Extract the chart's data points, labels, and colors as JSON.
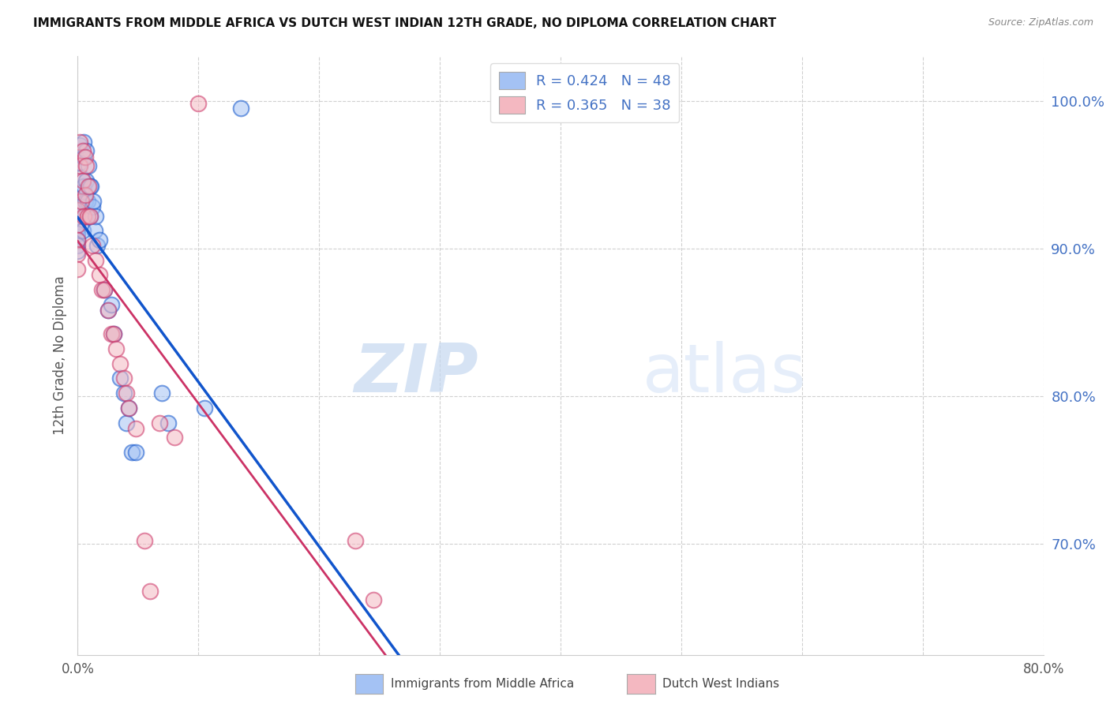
{
  "title": "IMMIGRANTS FROM MIDDLE AFRICA VS DUTCH WEST INDIAN 12TH GRADE, NO DIPLOMA CORRELATION CHART",
  "source": "Source: ZipAtlas.com",
  "ylabel": "12th Grade, No Diploma",
  "xlim": [
    0.0,
    0.8
  ],
  "ylim": [
    0.625,
    1.03
  ],
  "ytick_values": [
    0.7,
    0.8,
    0.9,
    1.0
  ],
  "blue_R": 0.424,
  "blue_N": 48,
  "pink_R": 0.365,
  "pink_N": 38,
  "blue_color": "#a4c2f4",
  "pink_color": "#f4b8c1",
  "blue_line_color": "#1155cc",
  "pink_line_color": "#cc3366",
  "legend_label_blue": "Immigrants from Middle Africa",
  "legend_label_pink": "Dutch West Indians",
  "watermark_zip": "ZIP",
  "watermark_atlas": "atlas",
  "blue_scatter_x": [
    0.0,
    0.0,
    0.0,
    0.0,
    0.0,
    0.0,
    0.0,
    0.0,
    0.0,
    0.0,
    0.002,
    0.002,
    0.003,
    0.003,
    0.003,
    0.004,
    0.005,
    0.005,
    0.005,
    0.006,
    0.006,
    0.007,
    0.007,
    0.008,
    0.009,
    0.01,
    0.01,
    0.011,
    0.012,
    0.013,
    0.014,
    0.015,
    0.016,
    0.018,
    0.022,
    0.025,
    0.028,
    0.03,
    0.035,
    0.038,
    0.04,
    0.042,
    0.045,
    0.048,
    0.07,
    0.075,
    0.105,
    0.135
  ],
  "blue_scatter_y": [
    0.934,
    0.93,
    0.926,
    0.922,
    0.918,
    0.914,
    0.91,
    0.906,
    0.902,
    0.898,
    0.97,
    0.958,
    0.948,
    0.938,
    0.928,
    0.912,
    0.972,
    0.962,
    0.942,
    0.932,
    0.922,
    0.966,
    0.946,
    0.932,
    0.956,
    0.942,
    0.922,
    0.942,
    0.928,
    0.932,
    0.912,
    0.922,
    0.902,
    0.906,
    0.872,
    0.858,
    0.862,
    0.842,
    0.812,
    0.802,
    0.782,
    0.792,
    0.762,
    0.762,
    0.802,
    0.782,
    0.792,
    0.995
  ],
  "pink_scatter_x": [
    0.0,
    0.0,
    0.0,
    0.0,
    0.0,
    0.002,
    0.002,
    0.003,
    0.004,
    0.004,
    0.005,
    0.006,
    0.006,
    0.007,
    0.008,
    0.009,
    0.01,
    0.012,
    0.015,
    0.018,
    0.02,
    0.022,
    0.025,
    0.028,
    0.03,
    0.032,
    0.035,
    0.038,
    0.04,
    0.042,
    0.048,
    0.055,
    0.06,
    0.068,
    0.08,
    0.1,
    0.23,
    0.245
  ],
  "pink_scatter_y": [
    0.926,
    0.916,
    0.906,
    0.896,
    0.886,
    0.972,
    0.956,
    0.932,
    0.966,
    0.946,
    0.922,
    0.962,
    0.936,
    0.956,
    0.922,
    0.942,
    0.922,
    0.902,
    0.892,
    0.882,
    0.872,
    0.872,
    0.858,
    0.842,
    0.842,
    0.832,
    0.822,
    0.812,
    0.802,
    0.792,
    0.778,
    0.702,
    0.668,
    0.782,
    0.772,
    0.998,
    0.702,
    0.662
  ],
  "blue_line_x0": 0.0,
  "blue_line_x1": 0.8,
  "pink_line_x0": 0.0,
  "pink_line_x1": 0.8
}
